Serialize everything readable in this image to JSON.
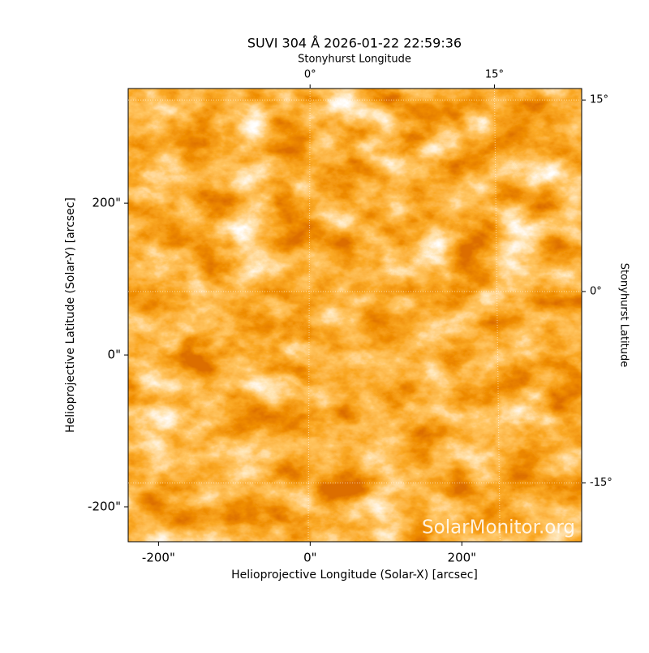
{
  "chart_data": {
    "type": "image",
    "title": "SUVI 304 Å 2026-01-22 22:59:36",
    "x_label": "Helioprojective Longitude (Solar-X) [arcsec]",
    "y_label": "Helioprojective Latitude (Solar-Y) [arcsec]",
    "x2_label": "Stonyhurst Longitude",
    "y2_label": "Stonyhurst Latitude",
    "watermark": "SolarMonitor.org",
    "xlim": [
      -240,
      358
    ],
    "ylim": [
      -246,
      351
    ],
    "xticks": [
      {
        "value": -200,
        "label": "-200\""
      },
      {
        "value": 0,
        "label": "0\""
      },
      {
        "value": 200,
        "label": "200\""
      }
    ],
    "yticks": [
      {
        "value": -200,
        "label": "-200\""
      },
      {
        "value": 0,
        "label": "0\""
      },
      {
        "value": 200,
        "label": "200\""
      }
    ],
    "x2lim": [
      -14.8,
      22.1
    ],
    "x2ticks": [
      {
        "value": 0,
        "label": "0°"
      },
      {
        "value": 15,
        "label": "15°"
      }
    ],
    "y2lim": [
      -19.6,
      15.9
    ],
    "y2ticks": [
      {
        "value": -15,
        "label": "-15°"
      },
      {
        "value": 0,
        "label": "0°"
      },
      {
        "value": 15,
        "label": "15°"
      }
    ],
    "grid": true
  }
}
